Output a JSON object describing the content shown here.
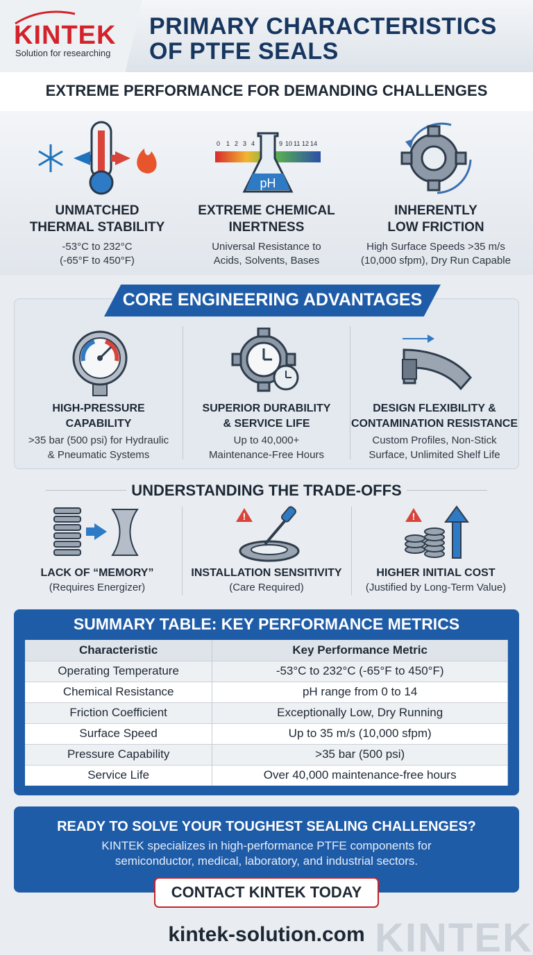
{
  "header": {
    "logo": "KINTEK",
    "tagline": "Solution for researching",
    "title_line1": "PRIMARY CHARACTERISTICS",
    "title_line2": "OF PTFE SEALS"
  },
  "section1": {
    "title": "EXTREME PERFORMANCE FOR DEMANDING CHALLENGES",
    "ph_scale": [
      "0",
      "1",
      "2",
      "3",
      "4",
      "9",
      "10",
      "11",
      "12",
      "14"
    ],
    "ph_label": "pH",
    "features": [
      {
        "h1": "UNMATCHED",
        "h2": "THERMAL STABILITY",
        "d1": "-53°C to 232°C",
        "d2": "(-65°F to 450°F)",
        "icon": "thermometer-icon"
      },
      {
        "h1": "EXTREME CHEMICAL",
        "h2": "INERTNESS",
        "d1": "Universal Resistance to",
        "d2": "Acids, Solvents, Bases",
        "icon": "flask-icon"
      },
      {
        "h1": "INHERENTLY",
        "h2": "LOW FRICTION",
        "d1": "High Surface Speeds >35 m/s",
        "d2": "(10,000 sfpm), Dry Run Capable",
        "icon": "gear-icon"
      }
    ]
  },
  "section2": {
    "title": "CORE ENGINEERING ADVANTAGES",
    "items": [
      {
        "h1": "HIGH-PRESSURE",
        "h2": "CAPABILITY",
        "d1": ">35 bar (500 psi) for Hydraulic",
        "d2": "& Pneumatic Systems",
        "icon": "pressure-gauge-icon"
      },
      {
        "h1": "SUPERIOR DURABILITY",
        "h2": "& SERVICE LIFE",
        "d1": "Up to 40,000+",
        "d2": "Maintenance-Free Hours",
        "icon": "gear-clock-icon"
      },
      {
        "h1": "DESIGN FLEXIBILITY &",
        "h2": "CONTAMINATION RESISTANCE",
        "d1": "Custom Profiles, Non-Stick",
        "d2": "Surface, Unlimited Shelf Life",
        "icon": "seal-profile-icon"
      }
    ]
  },
  "section3": {
    "title": "UNDERSTANDING THE TRADE-OFFS",
    "items": [
      {
        "h": "LACK OF “MEMORY”",
        "d": "(Requires Energizer)",
        "icon": "spring-icon"
      },
      {
        "h": "INSTALLATION SENSITIVITY",
        "d": "(Care Required)",
        "icon": "installation-tool-icon"
      },
      {
        "h": "HIGHER INITIAL COST",
        "d": "(Justified by Long-Term Value)",
        "icon": "cost-coins-icon"
      }
    ]
  },
  "table": {
    "title": "SUMMARY TABLE: KEY PERFORMANCE METRICS",
    "col1": "Characteristic",
    "col2": "Key Performance Metric",
    "rows": [
      {
        "c": "Operating Temperature",
        "v": "-53°C to 232°C (-65°F to 450°F)"
      },
      {
        "c": "Chemical Resistance",
        "v": "pH range from 0 to 14"
      },
      {
        "c": "Friction Coefficient",
        "v": "Exceptionally Low, Dry Running"
      },
      {
        "c": "Surface Speed",
        "v": "Up to 35 m/s (10,000 sfpm)"
      },
      {
        "c": "Pressure Capability",
        "v": ">35 bar (500 psi)"
      },
      {
        "c": "Service Life",
        "v": "Over 40,000 maintenance-free hours"
      }
    ]
  },
  "cta": {
    "heading": "READY TO SOLVE YOUR TOUGHEST SEALING CHALLENGES?",
    "line1": "KINTEK specializes in high-performance PTFE components for",
    "line2": "semiconductor, medical, laboratory, and industrial sectors.",
    "button": "CONTACT KINTEK TODAY"
  },
  "footer": {
    "site": "kintek-solution.com",
    "watermark": "KINTEK"
  },
  "colors": {
    "brand_blue": "#1f5ca8",
    "brand_red": "#d3222a",
    "title_navy": "#16365f"
  }
}
